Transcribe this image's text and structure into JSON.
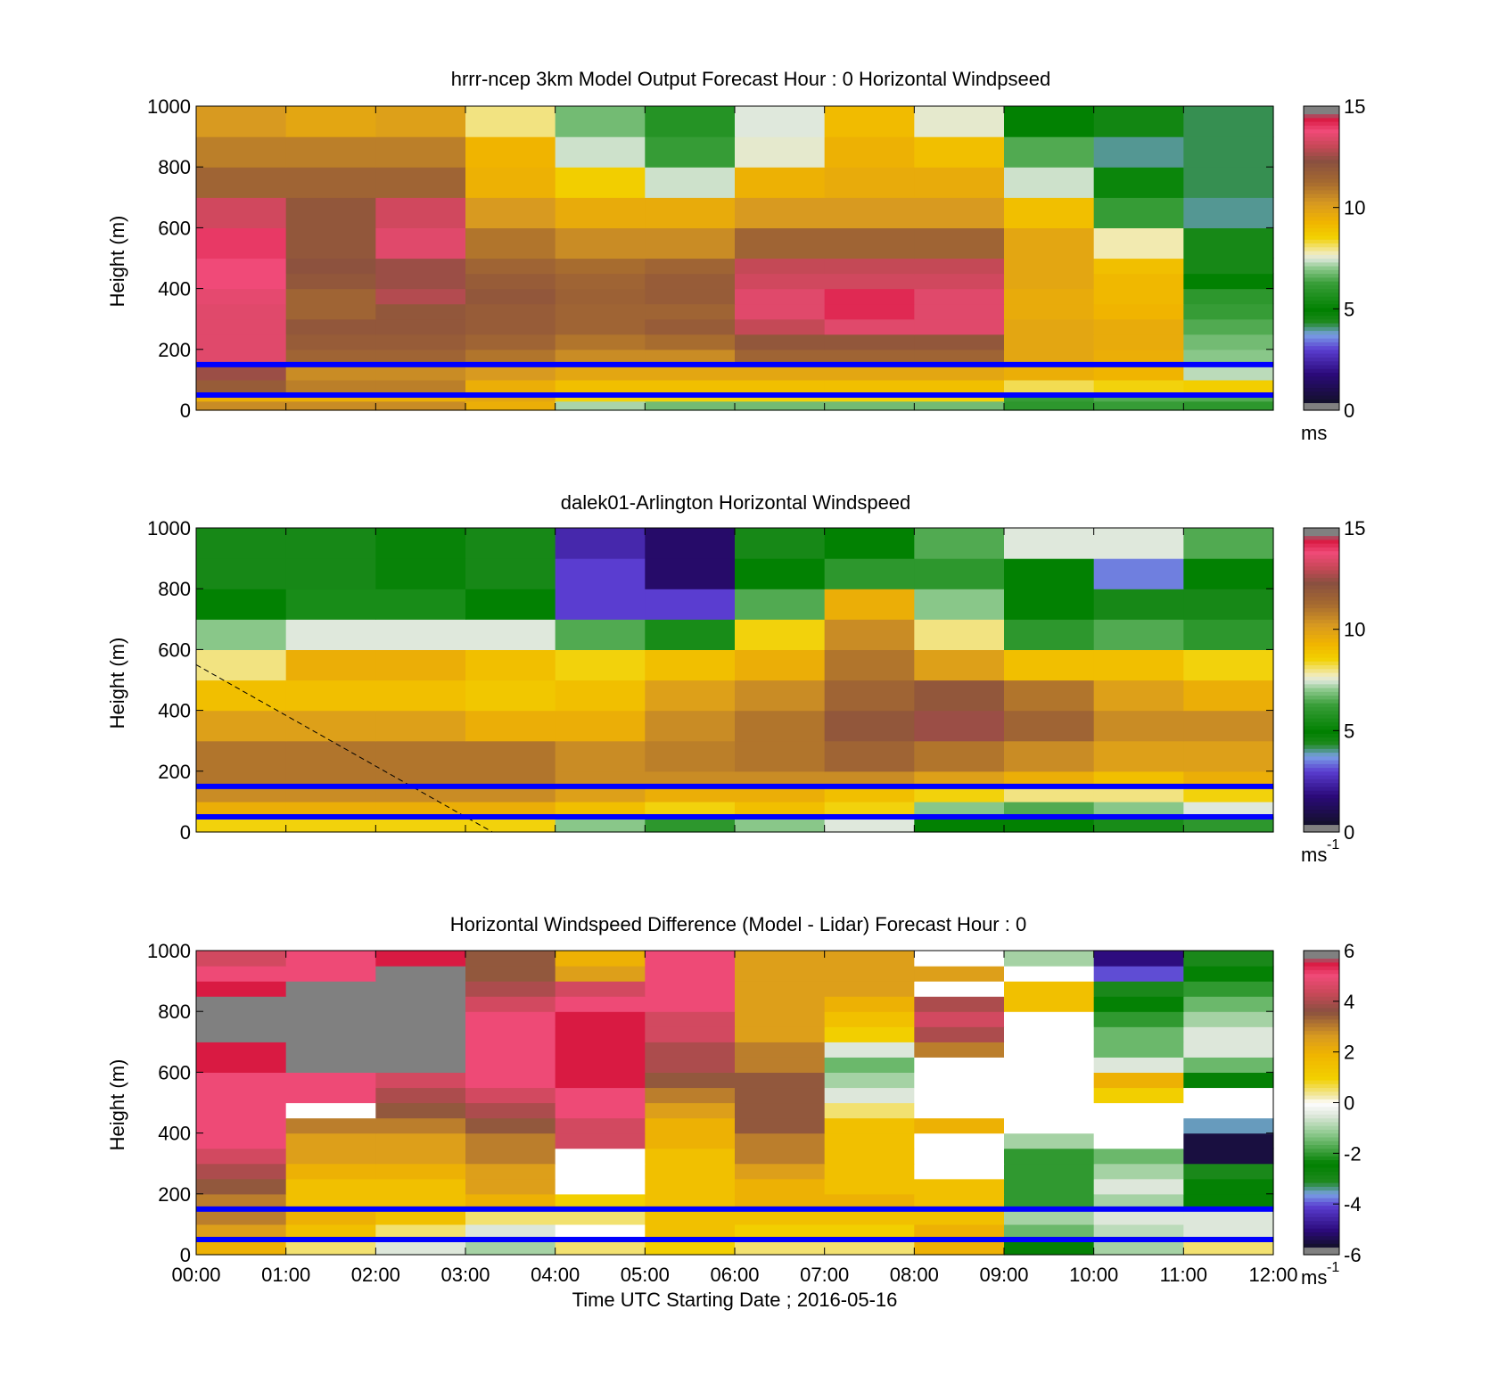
{
  "figure": {
    "xlabel": "Time UTC  Starting Date ; 2016-05-16",
    "x_tick_labels": [
      "00:00",
      "01:00",
      "02:00",
      "03:00",
      "04:00",
      "05:00",
      "06:00",
      "07:00",
      "08:00",
      "09:00",
      "10:00",
      "11:00",
      "12:00"
    ],
    "ylabel": "Height (m)",
    "y_tick_labels": [
      "0",
      "200",
      "400",
      "600",
      "800",
      "1000"
    ],
    "reference_lines_height_m": [
      50,
      150
    ],
    "reference_line_color": "#0000ff"
  },
  "colormaps": {
    "windspeed": {
      "range": [
        0,
        15
      ],
      "stops": [
        [
          0.0,
          "#808080"
        ],
        [
          0.02,
          "#808080"
        ],
        [
          0.03,
          "#14102e"
        ],
        [
          0.12,
          "#2b0a7a"
        ],
        [
          0.2,
          "#5a3dd0"
        ],
        [
          0.25,
          "#7aa0e6"
        ],
        [
          0.29,
          "#1f8a1f"
        ],
        [
          0.33,
          "#008000"
        ],
        [
          0.42,
          "#3a9e3a"
        ],
        [
          0.47,
          "#8fca8f"
        ],
        [
          0.5,
          "#dfe8dc"
        ],
        [
          0.52,
          "#f2eab0"
        ],
        [
          0.57,
          "#f2d000"
        ],
        [
          0.62,
          "#f0b400"
        ],
        [
          0.68,
          "#d89a20"
        ],
        [
          0.75,
          "#a56a30"
        ],
        [
          0.82,
          "#8a5040"
        ],
        [
          0.87,
          "#c84858"
        ],
        [
          0.92,
          "#f04a78"
        ],
        [
          0.96,
          "#d81840"
        ],
        [
          0.98,
          "#808080"
        ],
        [
          1.0,
          "#808080"
        ]
      ]
    },
    "difference": {
      "range": [
        -6,
        6
      ],
      "stops": [
        [
          0.0,
          "#808080"
        ],
        [
          0.02,
          "#808080"
        ],
        [
          0.03,
          "#14102e"
        ],
        [
          0.08,
          "#2b0a7a"
        ],
        [
          0.16,
          "#5a3dd0"
        ],
        [
          0.2,
          "#7aa0e6"
        ],
        [
          0.24,
          "#1f8a1f"
        ],
        [
          0.3,
          "#008000"
        ],
        [
          0.4,
          "#8fca8f"
        ],
        [
          0.46,
          "#dfe8dc"
        ],
        [
          0.5,
          "#ffffff"
        ],
        [
          0.52,
          "#f2eab0"
        ],
        [
          0.58,
          "#f2d000"
        ],
        [
          0.66,
          "#f0b400"
        ],
        [
          0.72,
          "#d89a20"
        ],
        [
          0.8,
          "#8a5040"
        ],
        [
          0.86,
          "#c84858"
        ],
        [
          0.92,
          "#f04a78"
        ],
        [
          0.96,
          "#d81840"
        ],
        [
          0.98,
          "#808080"
        ],
        [
          1.0,
          "#808080"
        ]
      ]
    }
  },
  "chart_data": [
    {
      "type": "heatmap",
      "title": "hrrr-ncep 3km Model Output   Forecast Hour : 0 Horizontal Windpseed",
      "xlabel": "",
      "ylabel": "Height (m)",
      "xlim": [
        0,
        12
      ],
      "ylim": [
        0,
        1000
      ],
      "colormap": "windspeed",
      "colorbar": {
        "range": [
          0,
          15
        ],
        "tick_labels": [
          "0",
          "5",
          "10",
          "15"
        ],
        "unit_label": "ms",
        "unit_sup": ""
      },
      "x_tick_labels_shown": false,
      "reference_lines_shown": true,
      "grid": false,
      "x_edges": [
        0,
        1,
        2,
        3,
        4,
        5,
        6,
        7,
        8,
        9,
        10,
        11,
        12
      ],
      "y_edges": [
        0,
        30,
        60,
        100,
        150,
        200,
        250,
        300,
        350,
        400,
        450,
        500,
        600,
        700,
        800,
        900,
        1000
      ],
      "values": [
        [
          10.5,
          10.5,
          10.5,
          9.5,
          7.2,
          6.8,
          6.8,
          6.8,
          6.8,
          6.0,
          6.2,
          6.0
        ],
        [
          9.5,
          9.5,
          9.5,
          9.8,
          8.5,
          8.5,
          8.5,
          8.5,
          8.5,
          6.2,
          6.5,
          6.5
        ],
        [
          11.8,
          10.8,
          10.8,
          9.5,
          9.0,
          9.0,
          9.0,
          9.0,
          9.0,
          8.2,
          8.5,
          8.6
        ],
        [
          12.5,
          10.5,
          10.5,
          10.2,
          9.8,
          9.8,
          9.8,
          9.8,
          9.8,
          9.5,
          9.3,
          7.3
        ],
        [
          13.5,
          11.5,
          11.5,
          11.0,
          10.5,
          10.5,
          11.5,
          11.5,
          11.5,
          9.8,
          9.5,
          7.0
        ],
        [
          13.5,
          11.8,
          11.8,
          11.5,
          11.0,
          11.2,
          12.0,
          12.0,
          12.0,
          9.8,
          9.6,
          6.8
        ],
        [
          13.5,
          12.0,
          12.0,
          11.8,
          11.5,
          11.8,
          13.0,
          13.5,
          13.5,
          9.8,
          9.6,
          6.5
        ],
        [
          13.5,
          11.5,
          12.0,
          11.8,
          11.5,
          11.5,
          13.5,
          14.2,
          13.5,
          9.6,
          9.3,
          6.2
        ],
        [
          13.6,
          11.5,
          12.8,
          12.0,
          11.6,
          11.8,
          13.5,
          14.2,
          13.5,
          9.6,
          9.2,
          6.0
        ],
        [
          13.8,
          12.0,
          12.5,
          11.8,
          11.5,
          11.8,
          13.2,
          13.2,
          13.2,
          9.8,
          9.2,
          5.0
        ],
        [
          13.8,
          12.2,
          12.5,
          11.5,
          11.2,
          11.5,
          13.0,
          13.0,
          13.0,
          9.8,
          9.0,
          4.5
        ],
        [
          14.0,
          12.0,
          13.5,
          11.0,
          10.5,
          10.5,
          11.5,
          11.5,
          11.5,
          9.8,
          7.8,
          4.5
        ],
        [
          13.2,
          12.0,
          13.2,
          10.2,
          9.6,
          9.6,
          10.2,
          10.2,
          10.2,
          9.0,
          6.2,
          4.0
        ],
        [
          11.5,
          11.5,
          11.5,
          9.4,
          8.6,
          7.4,
          9.4,
          9.6,
          9.6,
          7.4,
          5.2,
          4.2
        ],
        [
          10.8,
          10.8,
          10.8,
          9.3,
          7.4,
          6.2,
          7.6,
          9.4,
          9.0,
          6.5,
          4.0,
          4.2
        ],
        [
          10.2,
          9.8,
          10.0,
          8.0,
          6.8,
          5.8,
          7.5,
          9.1,
          7.6,
          5.0,
          4.6,
          4.2
        ]
      ]
    },
    {
      "type": "heatmap",
      "title": "dalek01-Arlington  Horizontal Windspeed",
      "xlabel": "",
      "ylabel": "Height (m)",
      "xlim": [
        0,
        12
      ],
      "ylim": [
        0,
        1000
      ],
      "colormap": "windspeed",
      "colorbar": {
        "range": [
          0,
          15
        ],
        "tick_labels": [
          "0",
          "5",
          "10",
          "15"
        ],
        "unit_label": "ms",
        "unit_sup": "-1"
      },
      "x_tick_labels_shown": false,
      "reference_lines_shown": true,
      "grid": false,
      "annotation_line": {
        "style": "dashed",
        "x": [
          0,
          3.3
        ],
        "y": [
          550,
          0
        ]
      },
      "x_edges": [
        0,
        1,
        2,
        3,
        4,
        5,
        6,
        7,
        8,
        9,
        10,
        11,
        12
      ],
      "y_edges": [
        0,
        50,
        100,
        150,
        200,
        300,
        400,
        500,
        600,
        700,
        800,
        900,
        1000
      ],
      "values": [
        [
          8.5,
          8.5,
          8.5,
          8.5,
          7.0,
          6.0,
          7.0,
          7.5,
          5.0,
          5.0,
          5.5,
          6.0
        ],
        [
          9.5,
          9.5,
          9.5,
          9.5,
          9.0,
          8.5,
          9.0,
          8.5,
          7.0,
          6.5,
          7.0,
          7.5
        ],
        [
          10.5,
          10.5,
          10.5,
          10.5,
          10.0,
          9.5,
          9.5,
          9.0,
          8.5,
          8.0,
          8.0,
          8.5
        ],
        [
          11.0,
          11.0,
          11.0,
          11.0,
          10.5,
          10.5,
          10.5,
          10.5,
          10.0,
          9.5,
          9.0,
          9.5
        ],
        [
          11.0,
          11.0,
          11.0,
          11.0,
          10.5,
          10.8,
          11.0,
          11.5,
          11.0,
          10.5,
          10.0,
          10.0
        ],
        [
          10.0,
          10.0,
          10.0,
          9.5,
          9.5,
          10.5,
          11.0,
          12.0,
          12.5,
          11.5,
          10.5,
          10.5
        ],
        [
          9.0,
          9.0,
          9.0,
          8.8,
          9.0,
          10.0,
          10.5,
          11.5,
          12.0,
          11.0,
          10.0,
          9.5
        ],
        [
          8.0,
          9.5,
          9.5,
          9.0,
          8.5,
          9.0,
          9.5,
          11.0,
          10.0,
          9.0,
          9.0,
          8.5
        ],
        [
          7.0,
          7.5,
          7.5,
          7.5,
          6.5,
          5.5,
          8.5,
          10.5,
          8.0,
          6.0,
          6.5,
          6.0
        ],
        [
          5.0,
          5.5,
          5.5,
          5.0,
          3.0,
          3.0,
          6.5,
          9.5,
          7.0,
          5.0,
          4.5,
          4.5
        ],
        [
          4.5,
          4.5,
          4.8,
          4.5,
          3.0,
          1.5,
          5.0,
          6.0,
          6.0,
          5.0,
          3.5,
          5.0
        ],
        [
          4.5,
          4.5,
          4.8,
          4.5,
          2.5,
          1.5,
          4.5,
          5.0,
          6.5,
          7.5,
          7.5,
          6.5
        ]
      ]
    },
    {
      "type": "heatmap",
      "title": "Horizontal Windspeed Difference (Model - Lidar) Forecast Hour : 0",
      "xlabel": "Time UTC  Starting Date ; 2016-05-16",
      "ylabel": "Height (m)",
      "xlim": [
        0,
        12
      ],
      "ylim": [
        0,
        1000
      ],
      "colormap": "difference",
      "colorbar": {
        "range": [
          -6,
          6
        ],
        "tick_labels": [
          "-6",
          "-4",
          "-2",
          "0",
          "2",
          "4",
          "6"
        ],
        "unit_label": "ms",
        "unit_sup": "-1"
      },
      "x_tick_labels_shown": true,
      "reference_lines_shown": true,
      "grid": false,
      "missing_value": null,
      "x_edges": [
        0,
        1,
        2,
        3,
        4,
        5,
        6,
        7,
        8,
        9,
        10,
        11,
        12
      ],
      "y_edges": [
        0,
        50,
        100,
        150,
        200,
        250,
        300,
        350,
        400,
        450,
        500,
        550,
        600,
        650,
        700,
        750,
        800,
        850,
        900,
        950,
        1000
      ],
      "values": [
        [
          2.0,
          0.5,
          -0.5,
          -1.0,
          0.5,
          1.0,
          0.5,
          0.5,
          2.0,
          -2.5,
          -1.0,
          0.5
        ],
        [
          2.5,
          1.5,
          0.5,
          -0.5,
          0.0,
          1.5,
          1.0,
          1.0,
          2.0,
          -1.5,
          -0.8,
          -0.5
        ],
        [
          3.0,
          2.0,
          1.5,
          0.5,
          0.5,
          1.5,
          1.5,
          1.5,
          1.5,
          -1.0,
          -0.5,
          -0.5
        ],
        [
          3.0,
          1.5,
          1.5,
          2.0,
          1.0,
          1.5,
          2.0,
          2.0,
          1.5,
          -2.0,
          -1.0,
          -2.5
        ],
        [
          3.5,
          1.5,
          1.5,
          2.5,
          null,
          1.5,
          2.0,
          1.5,
          1.5,
          -2.0,
          -0.5,
          -2.5
        ],
        [
          4.0,
          2.0,
          2.0,
          2.5,
          null,
          1.5,
          2.5,
          1.5,
          null,
          -2.0,
          -1.0,
          -3.0
        ],
        [
          4.5,
          2.5,
          2.5,
          3.0,
          null,
          1.5,
          3.0,
          1.5,
          null,
          -2.0,
          -1.5,
          -5.5
        ],
        [
          5.0,
          2.5,
          2.5,
          3.0,
          4.5,
          2.0,
          3.0,
          1.5,
          null,
          -1.0,
          null,
          -5.5
        ],
        [
          5.0,
          3.0,
          3.0,
          3.5,
          4.5,
          2.0,
          3.5,
          1.5,
          2.0,
          null,
          null,
          -3.5
        ],
        [
          5.0,
          null,
          3.5,
          4.0,
          5.0,
          2.5,
          3.5,
          0.5,
          null,
          null,
          null,
          0.0
        ],
        [
          5.0,
          5.0,
          4.0,
          4.5,
          5.0,
          3.0,
          3.5,
          -0.5,
          null,
          null,
          1.0,
          0.0
        ],
        [
          5.0,
          5.0,
          4.5,
          5.0,
          5.5,
          3.5,
          3.5,
          -1.0,
          null,
          null,
          2.0,
          -2.5
        ],
        [
          5.5,
          6.0,
          6.0,
          5.0,
          5.5,
          4.0,
          3.0,
          -1.5,
          null,
          null,
          -0.5,
          -1.5
        ],
        [
          5.5,
          6.0,
          6.0,
          5.0,
          5.5,
          4.0,
          3.0,
          -0.5,
          3.0,
          null,
          -1.5,
          -0.5
        ],
        [
          6.0,
          6.0,
          6.0,
          5.0,
          5.5,
          4.5,
          2.5,
          1.0,
          4.0,
          null,
          -1.5,
          -0.5
        ],
        [
          6.0,
          6.0,
          6.0,
          5.0,
          5.5,
          4.5,
          2.5,
          1.5,
          4.5,
          null,
          -2.0,
          -1.0
        ],
        [
          6.0,
          6.0,
          6.0,
          4.5,
          5.0,
          5.0,
          2.5,
          2.0,
          4.0,
          1.5,
          -2.5,
          -1.5
        ],
        [
          5.5,
          6.0,
          6.0,
          4.0,
          4.5,
          5.0,
          2.5,
          2.5,
          null,
          1.5,
          -3.0,
          -2.0
        ],
        [
          5.0,
          5.0,
          6.0,
          3.5,
          2.5,
          5.0,
          2.5,
          2.5,
          2.5,
          0.0,
          -4.0,
          -2.5
        ],
        [
          4.5,
          5.0,
          5.5,
          3.5,
          2.0,
          5.0,
          2.5,
          2.5,
          null,
          -1.0,
          -5.0,
          -3.0
        ]
      ]
    }
  ]
}
